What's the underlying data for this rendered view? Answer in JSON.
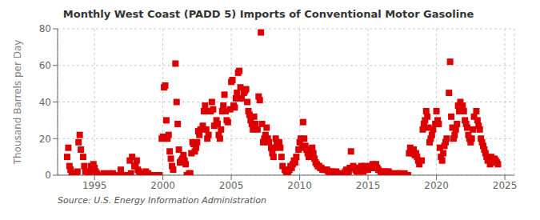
{
  "chart_data": {
    "type": "scatter",
    "title": "Monthly West Coast (PADD 5) Imports of Conventional Motor Gasoline",
    "ylabel": "Thousand Barrels per Day",
    "annotation": "Source: U.S. Energy Information Administration",
    "color": "#dd0000",
    "marker": "square",
    "grid": true,
    "xlim": [
      1992.3,
      2025.7
    ],
    "xticks": [
      1995,
      2000,
      2005,
      2010,
      2015,
      2020,
      2025
    ],
    "ylim": [
      0,
      80
    ],
    "yticks": [
      0,
      20,
      40,
      60,
      80
    ],
    "x": [
      1993.0,
      1993.083,
      1993.167,
      1993.25,
      1993.333,
      1993.5,
      1993.583,
      1993.667,
      1993.75,
      1993.833,
      1993.917,
      1994.0,
      1994.167,
      1994.25,
      1994.333,
      1994.5,
      1994.583,
      1994.667,
      1994.75,
      1994.917,
      1995.0,
      1995.083,
      1995.167,
      1995.25,
      1995.5,
      1995.583,
      1995.667,
      1995.75,
      1995.917,
      1996.0,
      1996.083,
      1996.25,
      1996.333,
      1996.5,
      1996.583,
      1996.75,
      1996.917,
      1997.0,
      1997.083,
      1997.25,
      1997.333,
      1997.5,
      1997.583,
      1997.667,
      1997.75,
      1997.917,
      1998.0,
      1998.083,
      1998.167,
      1998.25,
      1998.333,
      1998.5,
      1998.583,
      1998.75,
      1998.917,
      1999.0,
      1999.083,
      1999.25,
      1999.333,
      1999.5,
      1999.583,
      1999.75,
      1999.917,
      2000.0,
      2000.083,
      2000.167,
      2000.25,
      2000.333,
      2000.417,
      2000.5,
      2000.583,
      2000.667,
      2000.75,
      2000.917,
      2001.0,
      2001.083,
      2001.167,
      2001.25,
      2001.333,
      2001.417,
      2001.5,
      2001.583,
      2001.667,
      2001.75,
      2001.917,
      2002.0,
      2002.083,
      2002.167,
      2002.25,
      2002.333,
      2002.417,
      2002.5,
      2002.583,
      2002.667,
      2002.75,
      2002.917,
      2003.0,
      2003.083,
      2003.167,
      2003.25,
      2003.333,
      2003.417,
      2003.5,
      2003.583,
      2003.667,
      2003.75,
      2003.917,
      2004.0,
      2004.083,
      2004.167,
      2004.25,
      2004.333,
      2004.417,
      2004.5,
      2004.583,
      2004.667,
      2004.75,
      2004.917,
      2005.0,
      2005.083,
      2005.167,
      2005.25,
      2005.333,
      2005.417,
      2005.5,
      2005.583,
      2005.667,
      2005.75,
      2005.917,
      2006.0,
      2006.083,
      2006.167,
      2006.25,
      2006.333,
      2006.417,
      2006.5,
      2006.583,
      2006.667,
      2006.75,
      2006.917,
      2007.0,
      2007.083,
      2007.167,
      2007.25,
      2007.333,
      2007.417,
      2007.5,
      2007.583,
      2007.667,
      2007.75,
      2007.917,
      2008.0,
      2008.083,
      2008.167,
      2008.25,
      2008.333,
      2008.417,
      2008.5,
      2008.583,
      2008.667,
      2008.75,
      2008.917,
      2009.0,
      2009.083,
      2009.167,
      2009.25,
      2009.333,
      2009.417,
      2009.5,
      2009.583,
      2009.667,
      2009.75,
      2009.917,
      2010.0,
      2010.083,
      2010.167,
      2010.25,
      2010.333,
      2010.417,
      2010.5,
      2010.583,
      2010.667,
      2010.75,
      2010.917,
      2011.0,
      2011.083,
      2011.167,
      2011.25,
      2011.333,
      2011.417,
      2011.5,
      2011.583,
      2011.667,
      2011.75,
      2011.917,
      2012.0,
      2012.083,
      2012.167,
      2012.25,
      2012.333,
      2012.417,
      2012.5,
      2012.583,
      2012.667,
      2012.75,
      2012.917,
      2013.0,
      2013.083,
      2013.167,
      2013.25,
      2013.333,
      2013.417,
      2013.5,
      2013.583,
      2013.667,
      2013.75,
      2013.917,
      2014.0,
      2014.083,
      2014.167,
      2014.25,
      2014.333,
      2014.417,
      2014.5,
      2014.583,
      2014.667,
      2014.75,
      2014.917,
      2015.0,
      2015.083,
      2015.167,
      2015.25,
      2015.333,
      2015.417,
      2015.5,
      2015.583,
      2015.667,
      2015.75,
      2015.917,
      2016.0,
      2016.083,
      2016.167,
      2016.25,
      2016.333,
      2016.417,
      2016.5,
      2016.583,
      2016.667,
      2016.75,
      2016.917,
      2017.0,
      2017.083,
      2017.167,
      2017.25,
      2017.333,
      2017.417,
      2017.5,
      2017.583,
      2017.667,
      2017.75,
      2017.917,
      2018.0,
      2018.083,
      2018.167,
      2018.25,
      2018.333,
      2018.417,
      2018.5,
      2018.583,
      2018.667,
      2018.75,
      2018.917,
      2019.0,
      2019.083,
      2019.167,
      2019.25,
      2019.333,
      2019.417,
      2019.5,
      2019.583,
      2019.667,
      2019.75,
      2019.917,
      2020.0,
      2020.083,
      2020.167,
      2020.25,
      2020.333,
      2020.417,
      2020.5,
      2020.583,
      2020.667,
      2020.75,
      2020.917,
      2021.0,
      2021.083,
      2021.167,
      2021.25,
      2021.333,
      2021.417,
      2021.5,
      2021.583,
      2021.667,
      2021.75,
      2021.917,
      2022.0,
      2022.083,
      2022.167,
      2022.25,
      2022.333,
      2022.417,
      2022.5,
      2022.583,
      2022.667,
      2022.75,
      2022.917,
      2023.0,
      2023.083,
      2023.167,
      2023.25,
      2023.333,
      2023.417,
      2023.5,
      2023.583,
      2023.667,
      2023.75,
      2023.917,
      2024.0,
      2024.083,
      2024.167,
      2024.25,
      2024.333,
      2024.417,
      2024.5
    ],
    "values": [
      10,
      15,
      5,
      3,
      1,
      1,
      0,
      0,
      2,
      18,
      22,
      14,
      10,
      5,
      2,
      1,
      0,
      2,
      5,
      6,
      4,
      2,
      1,
      0,
      0,
      0,
      1,
      0,
      0,
      0,
      1,
      0,
      1,
      0,
      0,
      0,
      3,
      0,
      0,
      0,
      0,
      0,
      8,
      1,
      10,
      5,
      5,
      8,
      3,
      2,
      1,
      0,
      0,
      2,
      1,
      0,
      0,
      0,
      0,
      0,
      0,
      0,
      20,
      21,
      48,
      49,
      30,
      20,
      22,
      13,
      9,
      5,
      3,
      61,
      40,
      28,
      14,
      7,
      8,
      9,
      11,
      8,
      6,
      0,
      1,
      1,
      12,
      18,
      17,
      13,
      15,
      18,
      24,
      22,
      25,
      27,
      35,
      38,
      25,
      20,
      22,
      35,
      35,
      40,
      36,
      27,
      30,
      28,
      22,
      20,
      25,
      35,
      38,
      44,
      35,
      30,
      29,
      36,
      51,
      52,
      38,
      37,
      42,
      45,
      56,
      57,
      48,
      42,
      45,
      46,
      47,
      40,
      35,
      33,
      30,
      28,
      25,
      32,
      28,
      25,
      43,
      41,
      78,
      28,
      18,
      20,
      22,
      26,
      20,
      18,
      15,
      12,
      10,
      15,
      20,
      17,
      16,
      18,
      15,
      10,
      5,
      3,
      2,
      1,
      2,
      3,
      5,
      4,
      6,
      8,
      7,
      10,
      14,
      18,
      20,
      15,
      29,
      20,
      16,
      14,
      12,
      10,
      13,
      15,
      12,
      9,
      7,
      6,
      5,
      5,
      4,
      4,
      3,
      3,
      3,
      3,
      2,
      2,
      1,
      2,
      1,
      0,
      1,
      2,
      0,
      0,
      1,
      1,
      0,
      0,
      2,
      3,
      1,
      2,
      4,
      13,
      5,
      4,
      3,
      2,
      3,
      2,
      4,
      5,
      3,
      2,
      5,
      4,
      3,
      4,
      5,
      4,
      6,
      4,
      5,
      6,
      4,
      3,
      2,
      1,
      2,
      1,
      2,
      1,
      0,
      2,
      1,
      1,
      0,
      0,
      0,
      1,
      0,
      1,
      0,
      0,
      0,
      0,
      1,
      0,
      0,
      12,
      15,
      14,
      12,
      14,
      11,
      12,
      10,
      8,
      6,
      8,
      25,
      28,
      30,
      35,
      32,
      26,
      18,
      20,
      22,
      25,
      28,
      35,
      30,
      28,
      15,
      10,
      8,
      12,
      16,
      18,
      20,
      45,
      62,
      32,
      26,
      20,
      22,
      25,
      28,
      38,
      35,
      40,
      38,
      35,
      30,
      28,
      26,
      22,
      20,
      18,
      20,
      25,
      32,
      35,
      30,
      27,
      25,
      20,
      18,
      16,
      14,
      12,
      10,
      8,
      6,
      10,
      8,
      7,
      9,
      8,
      7,
      6
    ]
  }
}
